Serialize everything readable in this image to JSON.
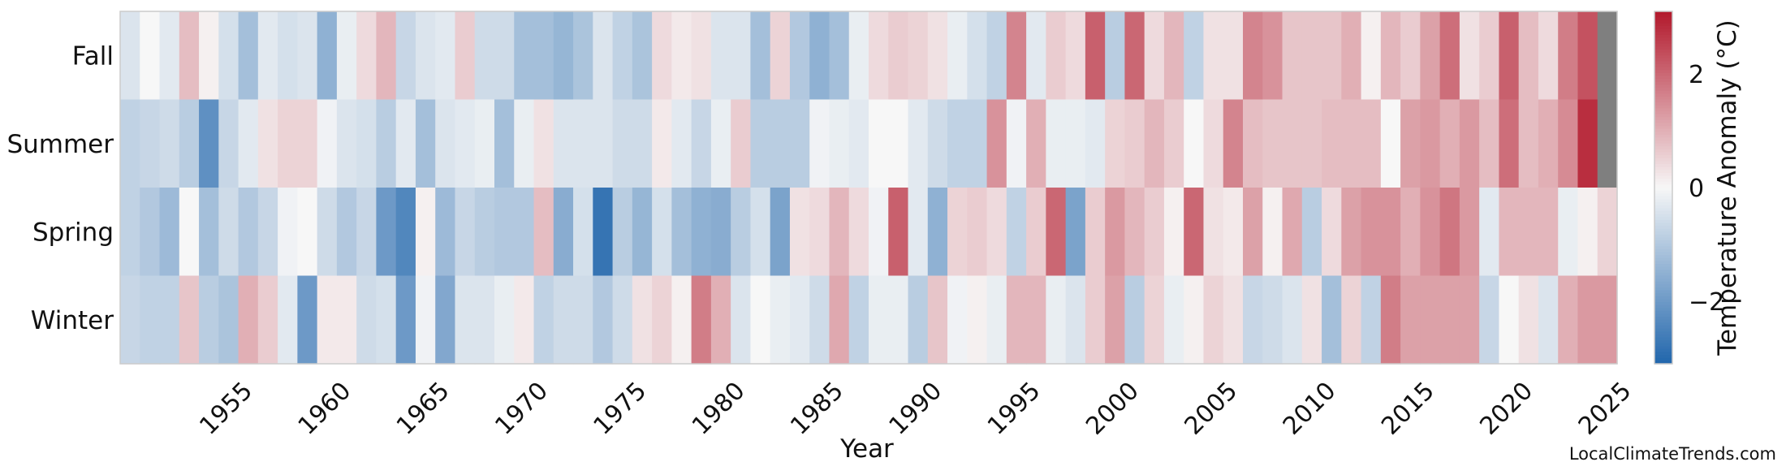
{
  "chart_data": {
    "type": "heatmap",
    "xlabel": "Year",
    "colorbar_label": "Temperature Anomaly (°C)",
    "rows": [
      "Fall",
      "Summer",
      "Spring",
      "Winter"
    ],
    "years": [
      1950,
      1951,
      1952,
      1953,
      1954,
      1955,
      1956,
      1957,
      1958,
      1959,
      1960,
      1961,
      1962,
      1963,
      1964,
      1965,
      1966,
      1967,
      1968,
      1969,
      1970,
      1971,
      1972,
      1973,
      1974,
      1975,
      1976,
      1977,
      1978,
      1979,
      1980,
      1981,
      1982,
      1983,
      1984,
      1985,
      1986,
      1987,
      1988,
      1989,
      1990,
      1991,
      1992,
      1993,
      1994,
      1995,
      1996,
      1997,
      1998,
      1999,
      2000,
      2001,
      2002,
      2003,
      2004,
      2005,
      2006,
      2007,
      2008,
      2009,
      2010,
      2011,
      2012,
      2013,
      2014,
      2015,
      2016,
      2017,
      2018,
      2019,
      2020,
      2021,
      2022,
      2023,
      2024,
      2025
    ],
    "x_ticks": [
      1955,
      1960,
      1965,
      1970,
      1975,
      1980,
      1985,
      1990,
      1995,
      2000,
      2005,
      2010,
      2015,
      2020,
      2025
    ],
    "colorbar_ticks": [
      -2,
      0,
      2
    ],
    "vmin": -3.1,
    "vmax": 3.1,
    "missing_color": "#7f7f7f",
    "colormap": [
      "#2166ac",
      "#f7f7f7",
      "#b2182b"
    ],
    "values": {
      "Fall": [
        -0.4,
        0.0,
        -0.3,
        0.8,
        0.1,
        -0.5,
        -1.2,
        -0.3,
        -0.5,
        -0.4,
        -1.5,
        -0.2,
        0.4,
        0.9,
        -0.7,
        -0.4,
        -0.3,
        0.6,
        -0.6,
        -0.6,
        -1.2,
        -1.2,
        -1.4,
        -1.1,
        -0.4,
        -0.8,
        -1.1,
        0.4,
        0.2,
        0.3,
        -0.4,
        -0.4,
        -1.2,
        0.5,
        -1.0,
        -1.5,
        -1.2,
        -0.2,
        0.4,
        0.6,
        0.5,
        0.3,
        -0.2,
        -0.5,
        -0.8,
        1.6,
        -0.3,
        0.6,
        0.4,
        2.1,
        -0.9,
        2.0,
        0.4,
        0.9,
        -0.8,
        0.3,
        0.3,
        1.6,
        1.4,
        0.7,
        0.7,
        0.7,
        1.0,
        0.1,
        0.9,
        0.6,
        1.2,
        1.9,
        0.3,
        0.6,
        2.1,
        0.8,
        0.4,
        1.7,
        2.3,
        null
      ],
      "Summer": [
        -0.8,
        -0.7,
        -0.6,
        -0.9,
        -2.2,
        -0.7,
        -0.3,
        0.3,
        0.5,
        0.5,
        -0.1,
        -0.4,
        -0.5,
        -0.9,
        -0.3,
        -1.2,
        -0.4,
        -0.3,
        -0.2,
        -1.2,
        -0.2,
        0.3,
        -0.4,
        -0.4,
        -0.4,
        -0.6,
        -0.6,
        0.2,
        -0.3,
        -0.7,
        -0.2,
        0.6,
        -0.9,
        -0.9,
        -0.9,
        -0.1,
        -0.2,
        -0.3,
        0.0,
        0.0,
        -0.3,
        -0.6,
        -0.8,
        -0.8,
        1.4,
        -0.1,
        1.0,
        -0.2,
        -0.2,
        -0.3,
        0.5,
        0.6,
        0.9,
        0.6,
        0.0,
        0.4,
        1.6,
        0.8,
        0.7,
        0.7,
        0.7,
        0.8,
        0.8,
        0.8,
        0.0,
        1.2,
        1.3,
        1.0,
        1.3,
        0.8,
        1.9,
        0.8,
        1.0,
        1.5,
        2.8,
        null
      ],
      "Spring": [
        -0.8,
        -1.0,
        -1.3,
        0.0,
        -1.2,
        -0.6,
        -1.0,
        -0.7,
        -0.1,
        0.0,
        -0.6,
        -1.0,
        -0.7,
        -2.0,
        -2.4,
        0.1,
        -1.3,
        -0.7,
        -0.9,
        -1.0,
        -1.0,
        0.8,
        -1.6,
        -0.5,
        -2.8,
        -0.9,
        -1.4,
        -0.5,
        -1.2,
        -1.5,
        -1.6,
        -0.9,
        -0.5,
        -1.8,
        0.3,
        0.4,
        0.9,
        0.4,
        -0.1,
        2.1,
        -0.3,
        -1.5,
        0.5,
        0.6,
        0.4,
        -0.8,
        0.6,
        2.0,
        -1.8,
        0.6,
        1.3,
        0.9,
        0.6,
        0.1,
        2.0,
        0.3,
        0.2,
        1.2,
        0.1,
        1.1,
        -0.9,
        0.4,
        1.2,
        1.4,
        1.4,
        1.0,
        1.4,
        1.8,
        1.3,
        -0.3,
        0.9,
        0.9,
        0.9,
        -0.2,
        0.1,
        0.5
      ],
      "Winter": [
        -0.7,
        -0.8,
        -0.8,
        0.7,
        -0.9,
        -1.1,
        1.0,
        0.6,
        -0.3,
        -2.0,
        0.2,
        0.2,
        -0.6,
        -0.5,
        -2.0,
        -0.1,
        -1.7,
        -0.4,
        -0.4,
        -0.2,
        0.2,
        -0.8,
        -0.6,
        -0.6,
        -1.0,
        -0.6,
        0.3,
        0.5,
        0.1,
        1.7,
        1.0,
        -0.4,
        0.0,
        -0.2,
        -0.3,
        -0.6,
        1.1,
        -0.8,
        -0.2,
        -0.2,
        -0.9,
        0.7,
        -0.1,
        0.1,
        -0.2,
        0.9,
        0.9,
        -0.2,
        -0.4,
        0.6,
        1.2,
        -0.9,
        0.5,
        -0.2,
        0.1,
        0.5,
        0.3,
        -0.7,
        -0.6,
        -0.4,
        0.3,
        -1.2,
        0.5,
        -0.8,
        1.7,
        1.2,
        1.2,
        1.2,
        1.2,
        -0.7,
        0.0,
        0.3,
        -0.4,
        1.0,
        1.3,
        1.3
      ]
    }
  },
  "watermark": "LocalClimateTrends.com"
}
